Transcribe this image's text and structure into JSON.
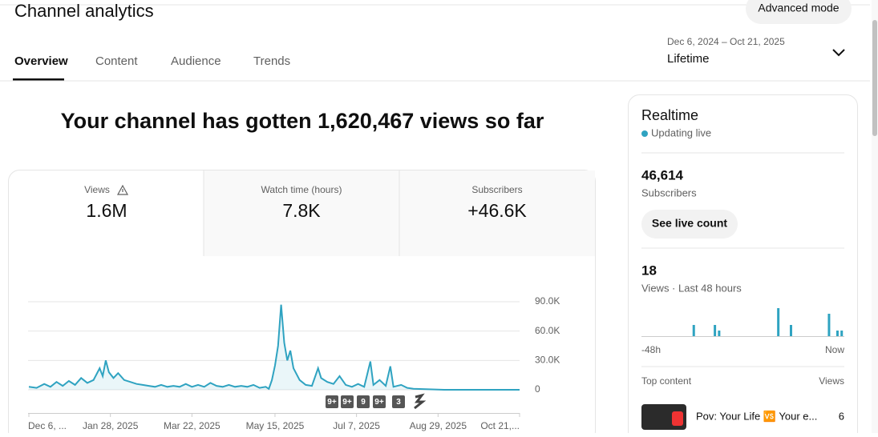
{
  "header": {
    "title": "Channel analytics",
    "advanced_mode": "Advanced mode"
  },
  "tabs": [
    "Overview",
    "Content",
    "Audience",
    "Trends"
  ],
  "date_range": {
    "range": "Dec 6, 2024 – Oct 21, 2025",
    "label": "Lifetime"
  },
  "headline": "Your channel has gotten 1,620,467 views so far",
  "metrics": [
    {
      "label": "Views",
      "value": "1.6M"
    },
    {
      "label": "Watch time (hours)",
      "value": "7.8K"
    },
    {
      "label": "Subscribers",
      "value": "+46.6K"
    }
  ],
  "chart_data": {
    "type": "line",
    "color": "#2fa3c1",
    "x": [
      0,
      5,
      10,
      14,
      18,
      22,
      26,
      30,
      34,
      38,
      42,
      46,
      48,
      50,
      52,
      55,
      58,
      62,
      66,
      70,
      74,
      78,
      82,
      86,
      90,
      94,
      98,
      102,
      106,
      110,
      114,
      118,
      122,
      126,
      130,
      134,
      138,
      142,
      146,
      150,
      154,
      156,
      158,
      160,
      162,
      164,
      166,
      168,
      170,
      172,
      176,
      180,
      184,
      188,
      190,
      194,
      198,
      202,
      206,
      210,
      214,
      218,
      222,
      224,
      228,
      232,
      235,
      237,
      242,
      246,
      250,
      260,
      270,
      280,
      290,
      300,
      310,
      319
    ],
    "values": [
      3000,
      2000,
      6000,
      3000,
      8000,
      4000,
      9000,
      5000,
      12000,
      7000,
      10000,
      22000,
      14000,
      30000,
      18000,
      12000,
      17000,
      10000,
      8000,
      6000,
      5000,
      4000,
      3000,
      5000,
      3000,
      4000,
      3000,
      6000,
      3000,
      5000,
      3000,
      7000,
      4000,
      3000,
      5000,
      3000,
      4000,
      3000,
      5000,
      2000,
      3000,
      1000,
      10000,
      25000,
      45000,
      87000,
      48000,
      30000,
      40000,
      22000,
      10000,
      5000,
      4000,
      22000,
      12000,
      8000,
      6000,
      14000,
      5000,
      3000,
      6000,
      3000,
      29000,
      5000,
      10000,
      4000,
      24000,
      3000,
      5000,
      2000,
      1000,
      500,
      0,
      0,
      0,
      0,
      0,
      0
    ],
    "xlim": [
      0,
      319
    ],
    "xticks": [
      {
        "value": 0,
        "label": "Dec 6, ..."
      },
      {
        "value": 53,
        "label": "Jan 28, 2025"
      },
      {
        "value": 106,
        "label": "Mar 22, 2025"
      },
      {
        "value": 160,
        "label": "May 15, 2025"
      },
      {
        "value": 213,
        "label": "Jul 7, 2025"
      },
      {
        "value": 266,
        "label": "Aug 29, 2025"
      },
      {
        "value": 319,
        "label": "Oct 21,..."
      }
    ],
    "ylim": [
      0,
      90000
    ],
    "yticks": [
      0,
      {
        "value": 30000,
        "label": "30.0K"
      },
      {
        "value": 60000,
        "label": "60.0K"
      },
      {
        "value": 90000,
        "label": "90.0K"
      }
    ],
    "grid": true
  },
  "video_badges": [
    "9+",
    "9+",
    "9",
    "9+",
    "3"
  ],
  "realtime": {
    "title": "Realtime",
    "status": "Updating live",
    "subscribers": {
      "value": "46,614",
      "label": "Subscribers"
    },
    "button": "See live count",
    "views": {
      "value": "18",
      "label": "Views · Last 48 hours"
    },
    "bar_chart": {
      "type": "bar",
      "color": "#2fa3c1",
      "values": [
        0,
        0,
        0,
        0,
        0,
        0,
        0,
        0,
        0,
        0,
        0,
        0,
        2,
        0,
        0,
        0,
        0,
        2,
        1,
        0,
        0,
        0,
        0,
        0,
        0,
        0,
        0,
        0,
        0,
        0,
        0,
        0,
        5,
        0,
        0,
        2,
        0,
        0,
        0,
        0,
        0,
        0,
        0,
        0,
        4,
        0,
        1,
        1
      ],
      "start_label": "-48h",
      "end_label": "Now"
    },
    "top_content": {
      "label": "Top content",
      "views_label": "Views",
      "items": [
        {
          "title": "Pov: Your Life 🆚 Your e...",
          "views": "6"
        }
      ]
    }
  }
}
